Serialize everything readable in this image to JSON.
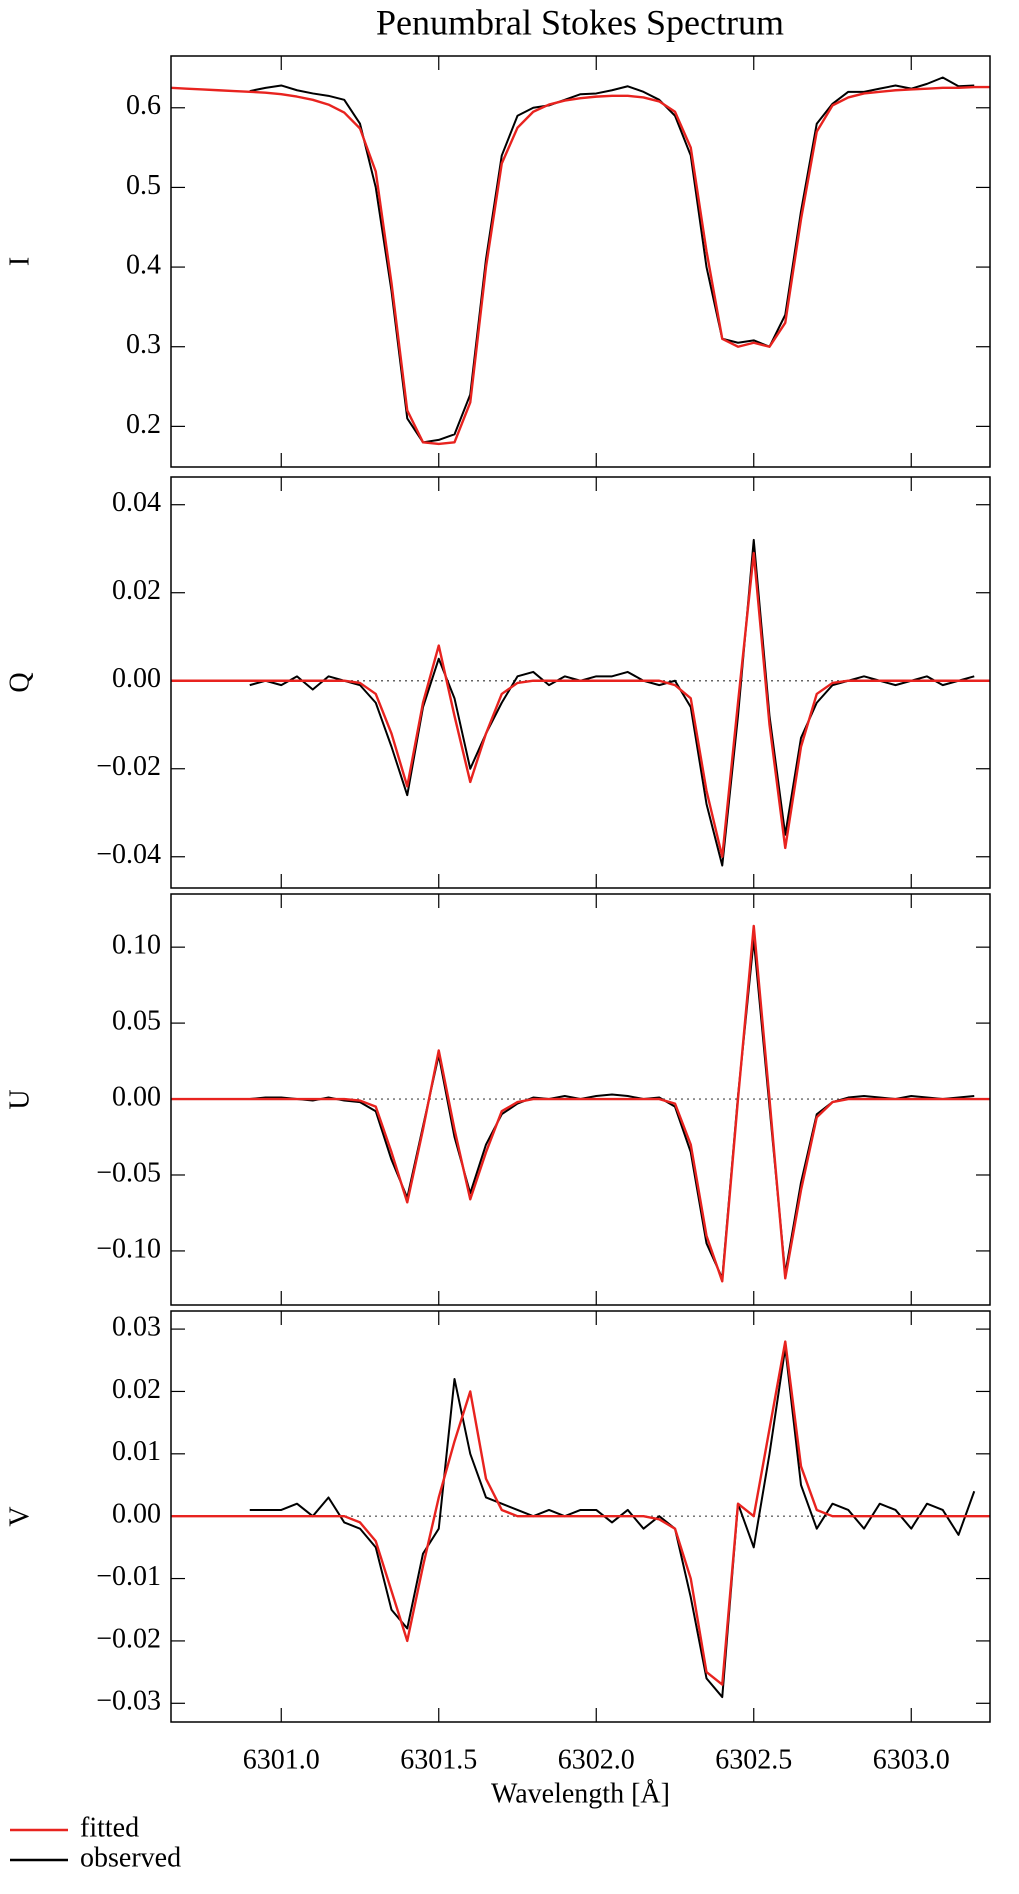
{
  "chart_data": [
    {
      "type": "line",
      "title": "Penumbral Stokes Spectrum",
      "ylabel": "I",
      "x": [
        6300.65,
        6300.7,
        6300.75,
        6300.8,
        6300.85,
        6300.9,
        6300.95,
        6301.0,
        6301.05,
        6301.1,
        6301.15,
        6301.2,
        6301.25,
        6301.3,
        6301.35,
        6301.4,
        6301.45,
        6301.5,
        6301.55,
        6301.6,
        6301.65,
        6301.7,
        6301.75,
        6301.8,
        6301.85,
        6301.9,
        6301.95,
        6302.0,
        6302.05,
        6302.1,
        6302.15,
        6302.2,
        6302.25,
        6302.3,
        6302.35,
        6302.4,
        6302.45,
        6302.5,
        6302.55,
        6302.6,
        6302.65,
        6302.7,
        6302.75,
        6302.8,
        6302.85,
        6302.9,
        6302.95,
        6303.0,
        6303.05,
        6303.1,
        6303.15,
        6303.2,
        6303.25
      ],
      "series": [
        {
          "name": "fitted",
          "color": "#e8231f",
          "values": [
            0.625,
            0.624,
            0.623,
            0.622,
            0.621,
            0.62,
            0.619,
            0.617,
            0.614,
            0.61,
            0.604,
            0.594,
            0.574,
            0.52,
            0.38,
            0.22,
            0.18,
            0.178,
            0.18,
            0.23,
            0.4,
            0.53,
            0.575,
            0.595,
            0.604,
            0.609,
            0.612,
            0.614,
            0.615,
            0.615,
            0.613,
            0.608,
            0.595,
            0.55,
            0.42,
            0.31,
            0.3,
            0.305,
            0.3,
            0.33,
            0.46,
            0.57,
            0.603,
            0.613,
            0.618,
            0.62,
            0.622,
            0.623,
            0.624,
            0.625,
            0.625,
            0.626,
            0.626
          ]
        },
        {
          "name": "observed",
          "color": "#000000",
          "values": [
            null,
            null,
            null,
            null,
            null,
            0.621,
            0.625,
            0.628,
            0.622,
            0.618,
            0.615,
            0.61,
            0.58,
            0.5,
            0.37,
            0.21,
            0.18,
            0.183,
            0.19,
            0.24,
            0.41,
            0.54,
            0.59,
            0.6,
            0.603,
            0.61,
            0.617,
            0.618,
            0.622,
            0.627,
            0.62,
            0.61,
            0.59,
            0.54,
            0.4,
            0.31,
            0.305,
            0.308,
            0.3,
            0.34,
            0.47,
            0.58,
            0.605,
            0.62,
            0.62,
            0.624,
            0.628,
            0.624,
            0.63,
            0.638,
            0.627,
            0.628,
            null
          ]
        }
      ],
      "ylim": [
        0.149,
        0.665
      ],
      "yticks": [
        0.2,
        0.3,
        0.4,
        0.5,
        0.6
      ],
      "zero_line": false
    },
    {
      "type": "line",
      "ylabel": "Q",
      "x": [
        6300.65,
        6300.7,
        6300.75,
        6300.8,
        6300.85,
        6300.9,
        6300.95,
        6301.0,
        6301.05,
        6301.1,
        6301.15,
        6301.2,
        6301.25,
        6301.3,
        6301.35,
        6301.4,
        6301.45,
        6301.5,
        6301.55,
        6301.6,
        6301.65,
        6301.7,
        6301.75,
        6301.8,
        6301.85,
        6301.9,
        6301.95,
        6302.0,
        6302.05,
        6302.1,
        6302.15,
        6302.2,
        6302.25,
        6302.3,
        6302.35,
        6302.4,
        6302.45,
        6302.5,
        6302.55,
        6302.6,
        6302.65,
        6302.7,
        6302.75,
        6302.8,
        6302.85,
        6302.9,
        6302.95,
        6303.0,
        6303.05,
        6303.1,
        6303.15,
        6303.2,
        6303.25
      ],
      "series": [
        {
          "color": "#e8231f",
          "values": [
            0,
            0,
            0,
            0,
            0,
            0,
            0,
            0,
            0,
            0,
            0,
            0,
            -0.0005,
            -0.003,
            -0.012,
            -0.024,
            -0.005,
            0.008,
            -0.008,
            -0.023,
            -0.012,
            -0.003,
            -0.0005,
            0,
            0,
            0,
            0,
            0,
            0,
            0,
            0,
            0,
            -0.001,
            -0.004,
            -0.025,
            -0.04,
            -0.005,
            0.029,
            -0.01,
            -0.038,
            -0.015,
            -0.003,
            -0.0005,
            0,
            0,
            0,
            0,
            0,
            0,
            0,
            0,
            0,
            0
          ]
        },
        {
          "color": "#000000",
          "values": [
            null,
            null,
            null,
            null,
            null,
            -0.001,
            0.0,
            -0.001,
            0.001,
            -0.002,
            0.001,
            0.0,
            -0.001,
            -0.005,
            -0.015,
            -0.026,
            -0.006,
            0.005,
            -0.004,
            -0.02,
            -0.012,
            -0.005,
            0.001,
            0.002,
            -0.001,
            0.001,
            0.0,
            0.001,
            0.001,
            0.002,
            0.0,
            -0.001,
            0.0,
            -0.006,
            -0.028,
            -0.042,
            -0.008,
            0.032,
            -0.008,
            -0.035,
            -0.013,
            -0.005,
            -0.001,
            0.0,
            0.001,
            0.0,
            -0.001,
            0.0,
            0.001,
            -0.001,
            0.0,
            0.001,
            null
          ]
        }
      ],
      "ylim": [
        -0.0471,
        0.0463
      ],
      "yticks": [
        {
          "value": -0.04,
          "label": "−0.04"
        },
        {
          "value": -0.02,
          "label": "−0.02"
        },
        {
          "value": 0,
          "label": "0.00"
        },
        {
          "value": 0.02,
          "label": "0.02"
        },
        {
          "value": 0.04,
          "label": "0.04"
        }
      ],
      "zero_line": true
    },
    {
      "type": "line",
      "ylabel": "U",
      "x": [
        6300.65,
        6300.7,
        6300.75,
        6300.8,
        6300.85,
        6300.9,
        6300.95,
        6301.0,
        6301.05,
        6301.1,
        6301.15,
        6301.2,
        6301.25,
        6301.3,
        6301.35,
        6301.4,
        6301.45,
        6301.5,
        6301.55,
        6301.6,
        6301.65,
        6301.7,
        6301.75,
        6301.8,
        6301.85,
        6301.9,
        6301.95,
        6302.0,
        6302.05,
        6302.1,
        6302.15,
        6302.2,
        6302.25,
        6302.3,
        6302.35,
        6302.4,
        6302.45,
        6302.5,
        6302.55,
        6302.6,
        6302.65,
        6302.7,
        6302.75,
        6302.8,
        6302.85,
        6302.9,
        6302.95,
        6303.0,
        6303.05,
        6303.1,
        6303.15,
        6303.2,
        6303.25
      ],
      "series": [
        {
          "color": "#e8231f",
          "values": [
            0,
            0,
            0,
            0,
            0,
            0,
            0,
            0,
            0,
            0,
            0,
            0,
            -0.001,
            -0.005,
            -0.035,
            -0.068,
            -0.02,
            0.032,
            -0.02,
            -0.066,
            -0.035,
            -0.008,
            -0.002,
            0,
            0,
            0,
            0,
            0,
            0,
            0,
            0,
            0,
            -0.003,
            -0.03,
            -0.09,
            -0.12,
            0.0,
            0.114,
            0.0,
            -0.118,
            -0.06,
            -0.012,
            -0.002,
            0,
            0,
            0,
            0,
            0,
            0,
            0,
            0,
            0,
            0
          ]
        },
        {
          "color": "#000000",
          "values": [
            null,
            null,
            null,
            null,
            null,
            0.0,
            0.001,
            0.001,
            0.0,
            -0.001,
            0.001,
            -0.001,
            -0.002,
            -0.008,
            -0.04,
            -0.065,
            -0.018,
            0.029,
            -0.025,
            -0.062,
            -0.03,
            -0.01,
            -0.003,
            0.001,
            0.0,
            0.002,
            0.0,
            0.002,
            0.003,
            0.002,
            0.0,
            0.001,
            -0.005,
            -0.035,
            -0.095,
            -0.118,
            0.002,
            0.105,
            -0.005,
            -0.115,
            -0.055,
            -0.01,
            -0.002,
            0.001,
            0.002,
            0.001,
            0.0,
            0.002,
            0.001,
            0.0,
            0.001,
            0.002,
            null
          ]
        }
      ],
      "ylim": [
        -0.1356,
        0.135
      ],
      "yticks": [
        {
          "value": -0.1,
          "label": "−0.10"
        },
        {
          "value": -0.05,
          "label": "−0.05"
        },
        {
          "value": 0,
          "label": "0.00"
        },
        {
          "value": 0.05,
          "label": "0.05"
        },
        {
          "value": 0.1,
          "label": "0.10"
        }
      ],
      "zero_line": true
    },
    {
      "type": "line",
      "ylabel": "V",
      "xlabel": "Wavelength [Å]",
      "x": [
        6300.65,
        6300.7,
        6300.75,
        6300.8,
        6300.85,
        6300.9,
        6300.95,
        6301.0,
        6301.05,
        6301.1,
        6301.15,
        6301.2,
        6301.25,
        6301.3,
        6301.35,
        6301.4,
        6301.45,
        6301.5,
        6301.55,
        6301.6,
        6301.65,
        6301.7,
        6301.75,
        6301.8,
        6301.85,
        6301.9,
        6301.95,
        6302.0,
        6302.05,
        6302.1,
        6302.15,
        6302.2,
        6302.25,
        6302.3,
        6302.35,
        6302.4,
        6302.45,
        6302.5,
        6302.55,
        6302.6,
        6302.65,
        6302.7,
        6302.75,
        6302.8,
        6302.85,
        6302.9,
        6302.95,
        6303.0,
        6303.05,
        6303.1,
        6303.15,
        6303.2,
        6303.25
      ],
      "series": [
        {
          "color": "#e8231f",
          "values": [
            0,
            0,
            0,
            0,
            0,
            0,
            0,
            0,
            0,
            0,
            0,
            0,
            -0.001,
            -0.004,
            -0.012,
            -0.02,
            -0.008,
            0.003,
            0.012,
            0.02,
            0.006,
            0.001,
            0,
            0,
            0,
            0,
            0,
            0,
            0,
            0,
            0,
            -0.0005,
            -0.002,
            -0.01,
            -0.025,
            -0.027,
            0.002,
            0.0,
            0.014,
            0.028,
            0.008,
            0.001,
            0,
            0,
            0,
            0,
            0,
            0,
            0,
            0,
            0,
            0,
            0
          ]
        },
        {
          "color": "#000000",
          "values": [
            null,
            null,
            null,
            null,
            null,
            0.001,
            0.001,
            0.001,
            0.002,
            0.0,
            0.003,
            -0.001,
            -0.002,
            -0.005,
            -0.015,
            -0.018,
            -0.006,
            -0.002,
            0.022,
            0.01,
            0.003,
            0.002,
            0.001,
            0.0,
            0.001,
            0.0,
            0.001,
            0.001,
            -0.001,
            0.001,
            -0.002,
            0.0,
            -0.002,
            -0.013,
            -0.026,
            -0.029,
            0.002,
            -0.005,
            0.01,
            0.027,
            0.005,
            -0.002,
            0.002,
            0.001,
            -0.002,
            0.002,
            0.001,
            -0.002,
            0.002,
            0.001,
            -0.003,
            0.004,
            null
          ]
        }
      ],
      "xlim": [
        6300.65,
        6303.25
      ],
      "xticks": [
        {
          "value": 6301,
          "label": "6301.0"
        },
        6301.5,
        {
          "value": 6302,
          "label": "6302.0"
        },
        6302.5,
        {
          "value": 6303,
          "label": "6303.0"
        }
      ],
      "ylim": [
        -0.033,
        0.0329
      ],
      "yticks": [
        {
          "value": -0.03,
          "label": "−0.03"
        },
        {
          "value": -0.02,
          "label": "−0.02"
        },
        {
          "value": -0.01,
          "label": "−0.01"
        },
        {
          "value": 0,
          "label": "0.00"
        },
        {
          "value": 0.01,
          "label": "0.01"
        },
        {
          "value": 0.02,
          "label": "0.02"
        },
        {
          "value": 0.03,
          "label": "0.03"
        }
      ],
      "zero_line": true
    }
  ]
}
